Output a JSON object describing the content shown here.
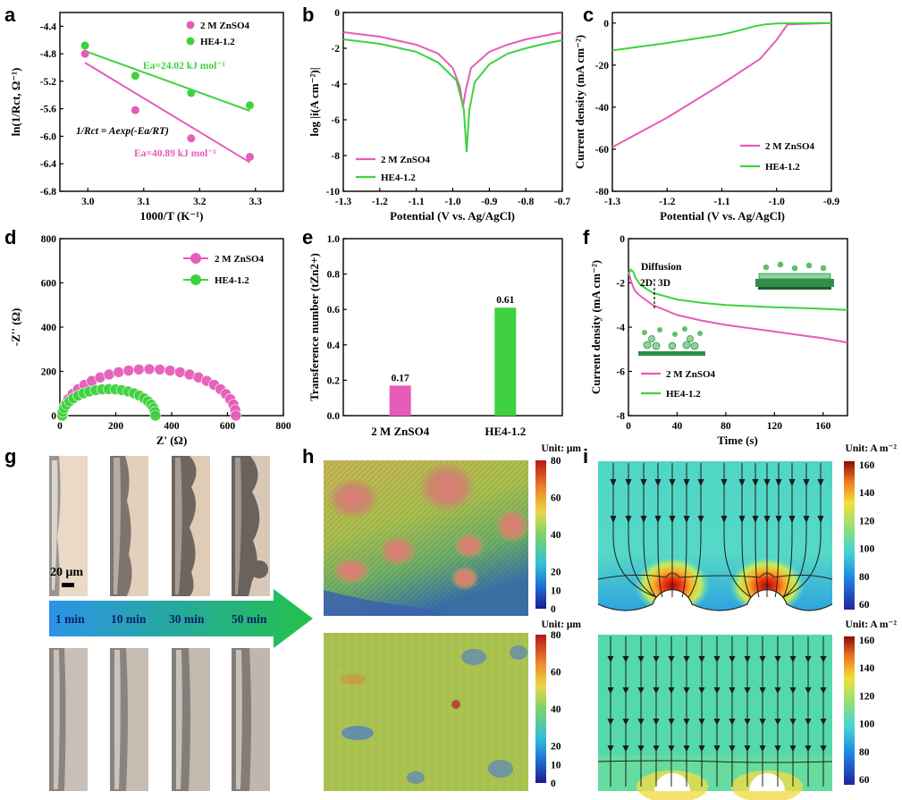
{
  "panel_labels": [
    "a",
    "b",
    "c",
    "d",
    "e",
    "f",
    "g",
    "h",
    "i"
  ],
  "colors": {
    "pink": "#e65cb8",
    "green": "#3fd13f",
    "axis": "#000000",
    "arrow_start": "#2b93e8",
    "arrow_end": "#22c24a"
  },
  "chart_data": [
    {
      "id": "a",
      "type": "scatter",
      "xlabel": "1000/T (K⁻¹)",
      "ylabel": "ln(1/Rct, Ω⁻¹)",
      "xlim": [
        2.95,
        3.35
      ],
      "ylim": [
        -6.8,
        -4.2
      ],
      "xticks": [
        "3.0",
        "3.1",
        "3.2",
        "3.3"
      ],
      "yticks": [
        "-4.4",
        "-4.8",
        "-5.2",
        "-5.6",
        "-6.0",
        "-6.4",
        "-6.8"
      ],
      "series": [
        {
          "name": "2 M ZnSO4",
          "color": "#e65cb8",
          "x": [
            2.995,
            3.085,
            3.185,
            3.29
          ],
          "y": [
            -4.8,
            -5.62,
            -6.03,
            -6.3
          ],
          "fit": [
            [
              2.995,
              -4.93
            ],
            [
              3.29,
              -6.38
            ]
          ]
        },
        {
          "name": "HE4-1.2",
          "color": "#3fd13f",
          "x": [
            2.995,
            3.085,
            3.185,
            3.29
          ],
          "y": [
            -4.68,
            -5.12,
            -5.37,
            -5.55
          ],
          "fit": [
            [
              2.995,
              -4.76
            ],
            [
              3.29,
              -5.63
            ]
          ]
        }
      ],
      "annotations": [
        "Ea=24.02 kJ mol⁻¹",
        "1/Rct = Aexp(-Ea/RT)",
        "Ea=40.89 kJ mol⁻¹"
      ],
      "legend": "top-right"
    },
    {
      "id": "b",
      "type": "line",
      "xlabel": "Potential (V vs. Ag/AgCl)",
      "ylabel": "log |i(A cm⁻²)|",
      "xlim": [
        -1.3,
        -0.7
      ],
      "ylim": [
        -10,
        0
      ],
      "xticks": [
        "-1.3",
        "-1.2",
        "-1.1",
        "-1.0",
        "-0.9",
        "-0.8",
        "-0.7"
      ],
      "yticks": [
        "0",
        "-2",
        "-4",
        "-6",
        "-8",
        "-10"
      ],
      "series": [
        {
          "name": "2 M ZnSO4",
          "color": "#e65cb8",
          "x": [
            -1.3,
            -1.2,
            -1.1,
            -1.04,
            -1.0,
            -0.98,
            -0.972,
            -0.965,
            -0.95,
            -0.9,
            -0.85,
            -0.8,
            -0.75,
            -0.7
          ],
          "y": [
            -1.1,
            -1.35,
            -1.8,
            -2.3,
            -3.1,
            -4.2,
            -5.3,
            -4.4,
            -3.1,
            -2.2,
            -1.8,
            -1.5,
            -1.3,
            -1.1
          ]
        },
        {
          "name": "HE4-1.2",
          "color": "#3fd13f",
          "x": [
            -1.3,
            -1.2,
            -1.1,
            -1.04,
            -0.99,
            -0.97,
            -0.962,
            -0.955,
            -0.94,
            -0.9,
            -0.85,
            -0.8,
            -0.75,
            -0.7
          ],
          "y": [
            -1.5,
            -1.75,
            -2.2,
            -2.8,
            -3.8,
            -5.4,
            -7.8,
            -5.5,
            -3.9,
            -2.9,
            -2.3,
            -2.0,
            -1.75,
            -1.55
          ]
        }
      ],
      "legend": "bottom-left"
    },
    {
      "id": "c",
      "type": "line",
      "xlabel": "Potential (V vs. Ag/AgCl)",
      "ylabel": "Current density (mA cm⁻²)",
      "xlim": [
        -1.3,
        -0.9
      ],
      "ylim": [
        -80,
        5
      ],
      "xticks": [
        "-1.3",
        "-1.2",
        "-1.1",
        "-1.0",
        "-0.9"
      ],
      "yticks": [
        "0",
        "-20",
        "-40",
        "-60",
        "-80"
      ],
      "series": [
        {
          "name": "2 M ZnSO4",
          "color": "#e65cb8",
          "x": [
            -1.3,
            -1.2,
            -1.1,
            -1.03,
            -1.0,
            -0.98,
            -0.9
          ],
          "y": [
            -59,
            -45,
            -29,
            -17,
            -8,
            -0.6,
            0
          ]
        },
        {
          "name": "HE4-1.2",
          "color": "#3fd13f",
          "x": [
            -1.3,
            -1.2,
            -1.1,
            -1.06,
            -1.04,
            -1.02,
            -1.0,
            -0.9
          ],
          "y": [
            -13,
            -9.5,
            -5.5,
            -3,
            -1.5,
            -0.6,
            -0.2,
            0
          ]
        }
      ],
      "legend": "bottom-right"
    },
    {
      "id": "d",
      "type": "scatter",
      "xlabel": "Z' (Ω)",
      "ylabel": "-Z'' (Ω)",
      "xlim": [
        0,
        800
      ],
      "ylim": [
        0,
        800
      ],
      "xticks": [
        "0",
        "200",
        "400",
        "600",
        "800"
      ],
      "yticks": [
        "0",
        "200",
        "400",
        "600",
        "800"
      ],
      "series": [
        {
          "name": "2 M ZnSO4",
          "color": "#e65cb8",
          "semicircle": {
            "x0": 10,
            "x1": 630,
            "height": 210,
            "n": 26
          }
        },
        {
          "name": "HE4-1.2",
          "color": "#3fd13f",
          "semicircle": {
            "x0": 8,
            "x1": 342,
            "height": 120,
            "n": 22
          }
        }
      ],
      "legend": "top-right"
    },
    {
      "id": "e",
      "type": "bar",
      "ylabel": "Transference number (tZn2+)",
      "categories": [
        "2 M ZnSO4",
        "HE4-1.2"
      ],
      "values": [
        0.17,
        0.61
      ],
      "value_labels": [
        "0.17",
        "0.61"
      ],
      "colors": [
        "#e65cb8",
        "#3fd13f"
      ],
      "ylim": [
        0,
        1.0
      ],
      "yticks": [
        "0.0",
        "0.2",
        "0.4",
        "0.6",
        "0.8",
        "1.0"
      ]
    },
    {
      "id": "f",
      "type": "line",
      "xlabel": "Time (s)",
      "ylabel": "Current density (mA cm⁻²)",
      "xlim": [
        0,
        180
      ],
      "ylim": [
        -8,
        0
      ],
      "xticks": [
        "0",
        "40",
        "80",
        "120",
        "160"
      ],
      "yticks": [
        "0",
        "-2",
        "-4",
        "-6",
        "-8"
      ],
      "series": [
        {
          "name": "2 M ZnSO4",
          "color": "#e65cb8",
          "x": [
            0,
            2,
            4,
            6,
            10,
            20,
            40,
            60,
            80,
            100,
            120,
            140,
            160,
            180
          ],
          "y": [
            -1.5,
            -1.9,
            -2.2,
            -2.4,
            -2.6,
            -3.0,
            -3.45,
            -3.7,
            -3.9,
            -4.05,
            -4.2,
            -4.35,
            -4.5,
            -4.7
          ]
        },
        {
          "name": "HE4-1.2",
          "color": "#3fd13f",
          "x": [
            0,
            2,
            4,
            6,
            10,
            20,
            40,
            60,
            80,
            100,
            120,
            140,
            160,
            180
          ],
          "y": [
            -1.6,
            -1.4,
            -1.5,
            -1.8,
            -2.1,
            -2.45,
            -2.75,
            -2.9,
            -3.0,
            -3.05,
            -3.1,
            -3.13,
            -3.17,
            -3.22
          ]
        }
      ],
      "annotations": [
        "Diffusion",
        "2D",
        "3D"
      ],
      "legend": "bottom-left"
    },
    {
      "id": "h",
      "type": "heatmap",
      "unit": "Unit: μm",
      "colorbar_ticks": [
        "80",
        "60",
        "40",
        "20",
        "10",
        "0"
      ],
      "colorbar_values": [
        80,
        60,
        40,
        20,
        10,
        0
      ]
    },
    {
      "id": "i",
      "type": "heatmap",
      "unit": "Unit: A m⁻²",
      "colorbar_ticks": [
        "160",
        "140",
        "120",
        "100",
        "80",
        "60"
      ],
      "colorbar_values": [
        160,
        140,
        120,
        100,
        80,
        60
      ]
    }
  ],
  "panel_g": {
    "scale_bar": "20 μm",
    "times": [
      "1 min",
      "10 min",
      "30 min",
      "50 min"
    ]
  }
}
